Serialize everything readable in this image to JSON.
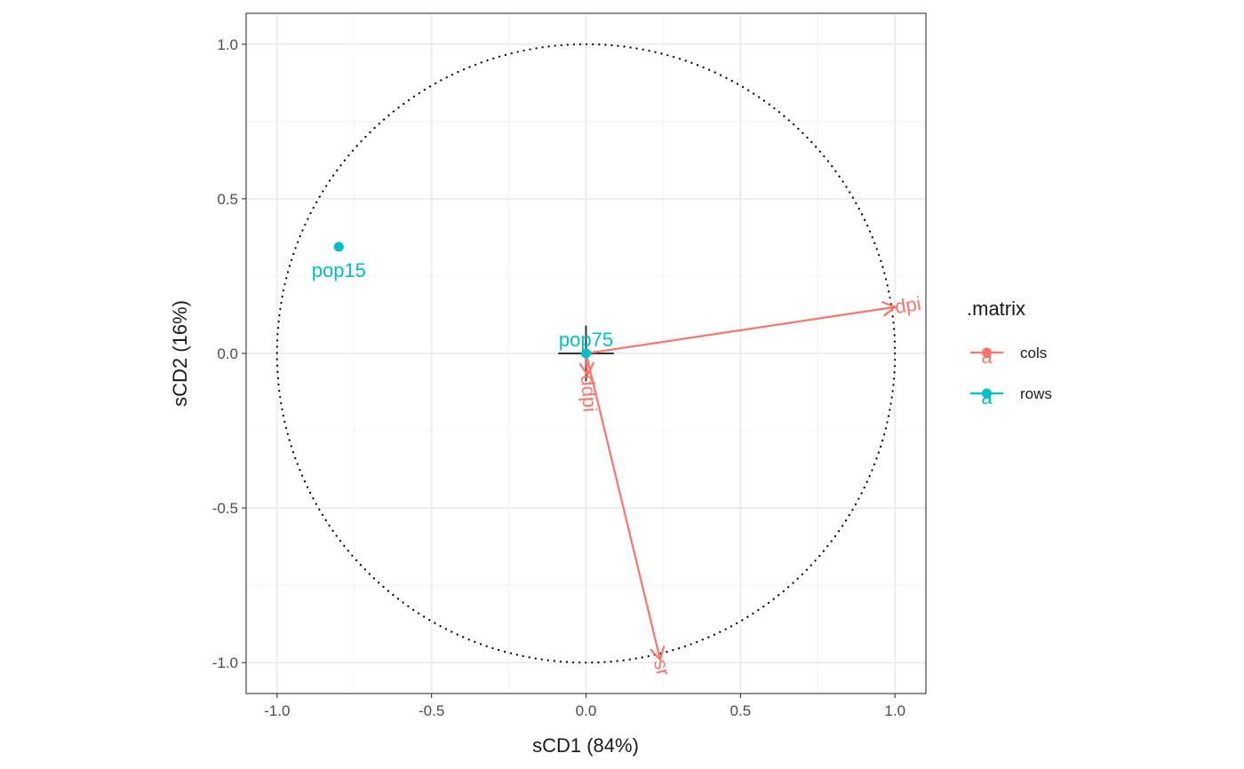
{
  "chart_data": {
    "type": "scatter",
    "title": "",
    "xlabel": "sCD1 (84%)",
    "ylabel": "sCD2 (16%)",
    "xlim": [
      -1.1,
      1.1
    ],
    "ylim": [
      -1.1,
      1.1
    ],
    "x_ticks": [
      -1.0,
      -0.5,
      0.0,
      0.5,
      1.0
    ],
    "y_ticks": [
      -1.0,
      -0.5,
      0.0,
      0.5,
      1.0
    ],
    "x_tick_labels": [
      "-1.0",
      "-0.5",
      "0.0",
      "0.5",
      "1.0"
    ],
    "y_tick_labels": [
      "-1.0",
      "-0.5",
      "0.0",
      "0.5",
      "1.0"
    ],
    "grid": true,
    "unit_circle": true,
    "legend": {
      "title": ".matrix",
      "position": "right",
      "entries": [
        {
          "label": "cols",
          "color": "#F8766D",
          "key_text": "a"
        },
        {
          "label": "rows",
          "color": "#00BFC4",
          "key_text": "a"
        }
      ]
    },
    "series": [
      {
        "name": "cols",
        "color": "#F8766D",
        "kind": "vectors",
        "points": [
          {
            "label": "dpi",
            "x": 1.0,
            "y": 0.15
          },
          {
            "label": "sr",
            "x": 0.24,
            "y": -0.99
          },
          {
            "label": "ddpi",
            "x": 0.005,
            "y": -0.07
          }
        ]
      },
      {
        "name": "rows",
        "color": "#00BFC4",
        "kind": "points",
        "points": [
          {
            "label": "pop15",
            "x": -0.8,
            "y": 0.345
          },
          {
            "label": "pop75",
            "x": 0.0,
            "y": 0.0
          }
        ]
      }
    ]
  }
}
